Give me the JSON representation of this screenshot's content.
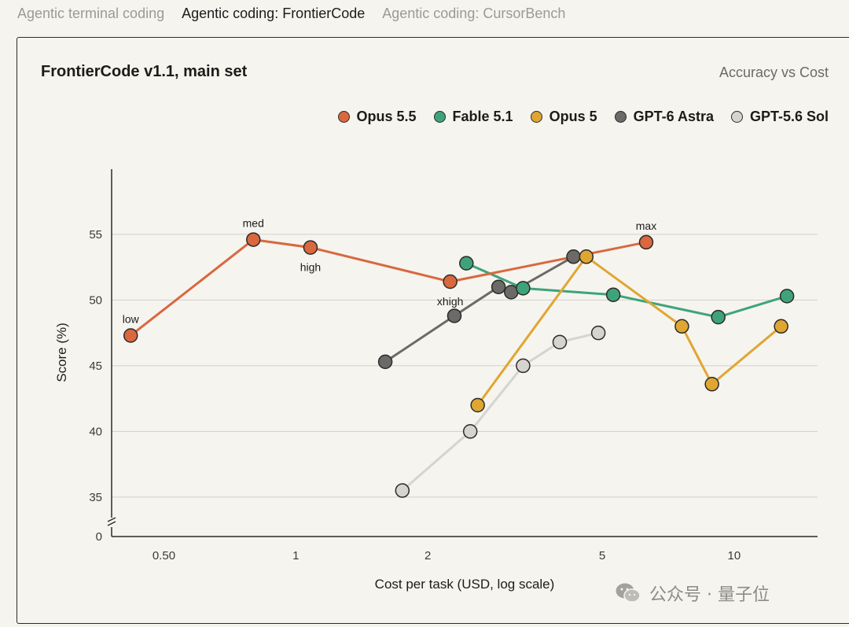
{
  "tabs": [
    {
      "label": "Agentic terminal coding",
      "active": false
    },
    {
      "label": "Agentic coding: FrontierCode",
      "active": true
    },
    {
      "label": "Agentic coding: CursorBench",
      "active": false
    }
  ],
  "card": {
    "title": "FrontierCode v1.1, main set",
    "subtitle": "Accuracy vs Cost"
  },
  "legend": [
    {
      "label": "Opus 5.5",
      "color": "#d9683f"
    },
    {
      "label": "Fable 5.1",
      "color": "#3fa37a"
    },
    {
      "label": "Opus 5",
      "color": "#e0a632"
    },
    {
      "label": "GPT-6 Astra",
      "color": "#6b6a68"
    },
    {
      "label": "GPT-5.6 Sol",
      "color": "#d6d4cf"
    }
  ],
  "watermark": {
    "icon": "wechat-icon",
    "text": "公众号 · 量子位"
  },
  "chart_data": {
    "type": "line",
    "title": "FrontierCode v1.1, main set",
    "subtitle": "Accuracy vs Cost",
    "xlabel": "Cost per task (USD, log scale)",
    "ylabel": "Score (%)",
    "x_scale": "log",
    "xlim": [
      0.38,
      15.5
    ],
    "ylim": [
      32,
      57
    ],
    "x_ticks": [
      0.5,
      1,
      2,
      5,
      10
    ],
    "x_tick_labels": [
      "0.50",
      "1",
      "2",
      "5",
      "10"
    ],
    "y_ticks": [
      35,
      40,
      45,
      50,
      55
    ],
    "y_tick_labels": [
      "35",
      "40",
      "45",
      "50",
      "55"
    ],
    "y_axis_break": true,
    "y_zero_label": "0",
    "grid": "horizontal",
    "legend_position": "top-right",
    "series": [
      {
        "name": "Opus 5.5",
        "color": "#d9683f",
        "points": [
          {
            "x": 0.42,
            "y": 47.3,
            "label": "low"
          },
          {
            "x": 0.8,
            "y": 54.6,
            "label": "med"
          },
          {
            "x": 1.08,
            "y": 54.0,
            "label": "high"
          },
          {
            "x": 2.25,
            "y": 51.4,
            "label": "xhigh"
          },
          {
            "x": 6.3,
            "y": 54.4,
            "label": "max"
          }
        ]
      },
      {
        "name": "Fable 5.1",
        "color": "#3fa37a",
        "points": [
          {
            "x": 2.45,
            "y": 52.8
          },
          {
            "x": 3.3,
            "y": 50.9
          },
          {
            "x": 5.3,
            "y": 50.4
          },
          {
            "x": 9.2,
            "y": 48.7
          },
          {
            "x": 13.2,
            "y": 50.3
          }
        ]
      },
      {
        "name": "Opus 5",
        "color": "#e0a632",
        "points": [
          {
            "x": 2.6,
            "y": 42.0
          },
          {
            "x": 4.6,
            "y": 53.3
          },
          {
            "x": 7.6,
            "y": 48.0
          },
          {
            "x": 8.9,
            "y": 43.6
          },
          {
            "x": 12.8,
            "y": 48.0
          }
        ]
      },
      {
        "name": "GPT-6 Astra",
        "color": "#6b6a68",
        "points": [
          {
            "x": 1.6,
            "y": 45.3
          },
          {
            "x": 2.3,
            "y": 48.8
          },
          {
            "x": 2.9,
            "y": 51.0
          },
          {
            "x": 3.1,
            "y": 50.6
          },
          {
            "x": 4.3,
            "y": 53.3
          }
        ]
      },
      {
        "name": "GPT-5.6 Sol",
        "color": "#d6d4cf",
        "points": [
          {
            "x": 1.75,
            "y": 35.5
          },
          {
            "x": 2.5,
            "y": 40.0
          },
          {
            "x": 3.3,
            "y": 45.0
          },
          {
            "x": 4.0,
            "y": 46.8
          },
          {
            "x": 4.9,
            "y": 47.5
          }
        ]
      }
    ]
  }
}
